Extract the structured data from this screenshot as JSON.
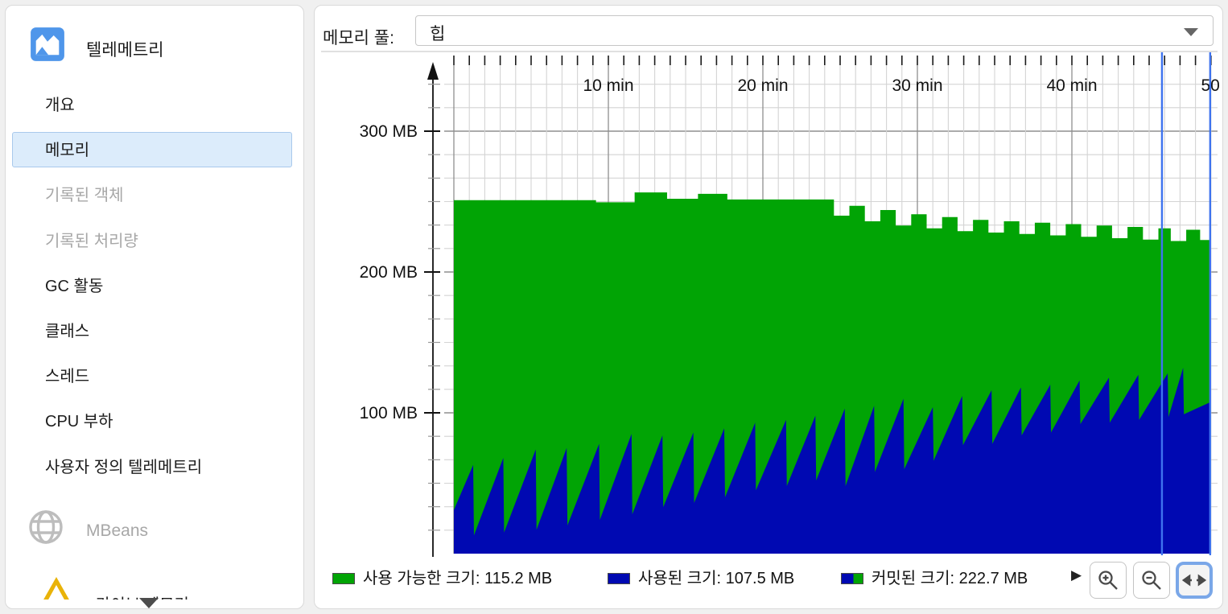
{
  "sidebar": {
    "title": "텔레메트리",
    "items": [
      {
        "label": "개요",
        "state": "normal"
      },
      {
        "label": "메모리",
        "state": "selected"
      },
      {
        "label": "기록된 객체",
        "state": "disabled"
      },
      {
        "label": "기록된 처리량",
        "state": "disabled"
      },
      {
        "label": "GC 활동",
        "state": "normal"
      },
      {
        "label": "클래스",
        "state": "normal"
      },
      {
        "label": "스레드",
        "state": "normal"
      },
      {
        "label": "CPU 부하",
        "state": "normal"
      },
      {
        "label": "사용자 정의 텔레메트리",
        "state": "normal"
      }
    ],
    "mbeans_label": "MBeans",
    "partial_item_label": "라이브 메모리"
  },
  "toolbar": {
    "memory_pool_label": "메모리 풀:",
    "memory_pool_value": "힙"
  },
  "legend": {
    "items": [
      {
        "swatch": "green",
        "label": "사용 가능한 크기:  115.2 MB"
      },
      {
        "swatch": "blue",
        "label": "사용된 크기:  107.5 MB"
      },
      {
        "swatch": "dual",
        "label": "커밋된 크기:  222.7 MB"
      }
    ],
    "expander": "▶"
  },
  "controls": {
    "buttons": [
      {
        "name": "zoom-in",
        "active": false
      },
      {
        "name": "zoom-out",
        "active": false
      },
      {
        "name": "fit-width",
        "active": true
      }
    ]
  },
  "chart_data": {
    "type": "area",
    "x_unit": "min",
    "xlim": [
      0,
      49.6
    ],
    "ylim_mb": [
      0,
      352
    ],
    "grid": true,
    "x_ticks": [
      {
        "t": 10,
        "label": "10 min"
      },
      {
        "t": 20,
        "label": "20 min"
      },
      {
        "t": 30,
        "label": "30 min"
      },
      {
        "t": 40,
        "label": "40 min"
      },
      {
        "t": 50,
        "label": "50 min"
      }
    ],
    "y_ticks": [
      {
        "mb": 100,
        "label": "100 MB"
      },
      {
        "mb": 200,
        "label": "200 MB"
      },
      {
        "mb": 300,
        "label": "300 MB"
      }
    ],
    "y_minor_step_mb": 16.667,
    "x_minor_step_min": 1,
    "series": [
      {
        "name": "free-size",
        "label": "사용 가능한 크기",
        "current": "115.2 MB",
        "color": "#01a405"
      },
      {
        "name": "used-size",
        "label": "사용된 크기",
        "current": "107.5 MB",
        "color": "#0009b2"
      },
      {
        "name": "committed-size",
        "label": "커밋된 크기",
        "current": "222.7 MB",
        "color": "dual"
      }
    ],
    "data_end_min": 48.95,
    "bookmark_lines_min": [
      45.83,
      48.95
    ],
    "bookmark_color": "#3e73ee",
    "grid_minor_color": "#d4d4d4",
    "grid_major_color": "#8f8f8f",
    "used_points_min_mb": [
      [
        0,
        31
      ],
      [
        1.25,
        63
      ],
      [
        1.3,
        13
      ],
      [
        3.2,
        68
      ],
      [
        3.25,
        15
      ],
      [
        5.3,
        74
      ],
      [
        5.35,
        17
      ],
      [
        7.3,
        75
      ],
      [
        7.35,
        20
      ],
      [
        9.4,
        78
      ],
      [
        9.45,
        24
      ],
      [
        11.5,
        85
      ],
      [
        11.55,
        28
      ],
      [
        13.5,
        84
      ],
      [
        13.55,
        33
      ],
      [
        15.5,
        86
      ],
      [
        15.55,
        36
      ],
      [
        17.5,
        89
      ],
      [
        17.55,
        40
      ],
      [
        19.5,
        93
      ],
      [
        19.55,
        45
      ],
      [
        21.5,
        95
      ],
      [
        21.55,
        48
      ],
      [
        23.4,
        98
      ],
      [
        23.45,
        52
      ],
      [
        25.3,
        103
      ],
      [
        25.35,
        48
      ],
      [
        27.2,
        105
      ],
      [
        27.25,
        58
      ],
      [
        29.1,
        110
      ],
      [
        29.15,
        60
      ],
      [
        31,
        104
      ],
      [
        31.05,
        66
      ],
      [
        32.9,
        112
      ],
      [
        32.95,
        77
      ],
      [
        34.8,
        116
      ],
      [
        34.85,
        78
      ],
      [
        36.7,
        118
      ],
      [
        36.75,
        84
      ],
      [
        38.6,
        120
      ],
      [
        38.65,
        86
      ],
      [
        40.5,
        123
      ],
      [
        40.55,
        92
      ],
      [
        42.4,
        125
      ],
      [
        42.45,
        93
      ],
      [
        44.3,
        127
      ],
      [
        44.35,
        95
      ],
      [
        46.2,
        128
      ],
      [
        46.25,
        97
      ],
      [
        47.2,
        132
      ],
      [
        47.25,
        99
      ],
      [
        48.95,
        107.5
      ]
    ],
    "committed_steps_min_mb": [
      [
        0,
        251
      ],
      [
        9.2,
        249.5
      ],
      [
        11.7,
        256.5
      ],
      [
        13.8,
        252
      ],
      [
        15.8,
        255.5
      ],
      [
        17.7,
        251.5
      ],
      [
        24.6,
        240
      ],
      [
        25.6,
        247
      ],
      [
        26.6,
        236
      ],
      [
        27.6,
        244
      ],
      [
        28.6,
        233
      ],
      [
        29.6,
        241
      ],
      [
        30.6,
        231
      ],
      [
        31.6,
        239
      ],
      [
        32.6,
        229
      ],
      [
        33.6,
        237
      ],
      [
        34.6,
        228
      ],
      [
        35.6,
        236
      ],
      [
        36.6,
        227
      ],
      [
        37.6,
        235
      ],
      [
        38.6,
        226
      ],
      [
        39.6,
        234
      ],
      [
        40.6,
        225
      ],
      [
        41.6,
        233
      ],
      [
        42.6,
        224
      ],
      [
        43.6,
        232
      ],
      [
        44.6,
        223
      ],
      [
        45.6,
        231
      ],
      [
        46.4,
        222
      ],
      [
        47.4,
        230
      ],
      [
        48.3,
        222.7
      ]
    ]
  }
}
